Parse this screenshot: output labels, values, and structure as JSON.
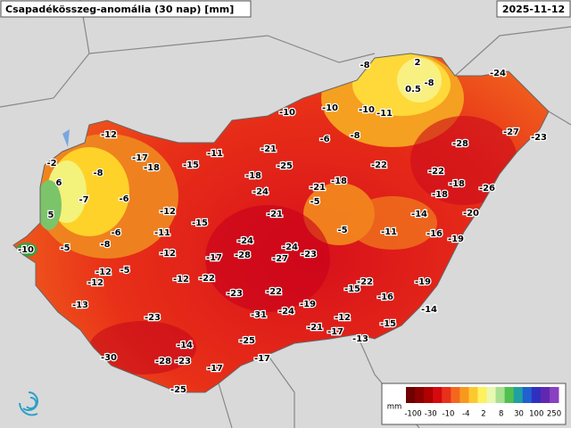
{
  "header": {
    "title": "Csapadékösszeg-anomália (30 nap) [mm]",
    "date": "2025-11-12"
  },
  "stations": [
    "-8",
    "2",
    "0.5",
    "-8",
    "-24",
    "-10",
    "-10",
    "-10",
    "-11",
    "-27",
    "-23",
    "-12",
    "-6",
    "-8",
    "-28",
    "-2",
    "-17",
    "-18",
    "-15",
    "-11",
    "-21",
    "-25",
    "-22",
    "-22",
    "-8",
    "-18",
    "-18",
    "-18",
    "6",
    "-24",
    "-21",
    "-18",
    "-26",
    "-7",
    "-6",
    "-5",
    "-12",
    "-21",
    "-14",
    "-20",
    "5",
    "-15",
    "-6",
    "-11",
    "-5",
    "-11",
    "-16",
    "-19",
    "-8",
    "-24",
    "-24",
    "-10",
    "-5",
    "-12",
    "-28",
    "-27",
    "-23",
    "-17",
    "-12",
    "-5",
    "-12",
    "-12",
    "-22",
    "-22",
    "-15",
    "-19",
    "-23",
    "-22",
    "-16",
    "-13",
    "-19",
    "-24",
    "-31",
    "-14",
    "-12",
    "-23",
    "-15",
    "-21",
    "-17",
    "-14",
    "-25",
    "-13",
    "-30",
    "-28",
    "-23",
    "-17",
    "-17",
    "-25"
  ],
  "legend": {
    "unit": "mm",
    "labels": [
      "-100",
      "-30",
      "-10",
      "-4",
      "2",
      "8",
      "30",
      "100",
      "250"
    ]
  }
}
